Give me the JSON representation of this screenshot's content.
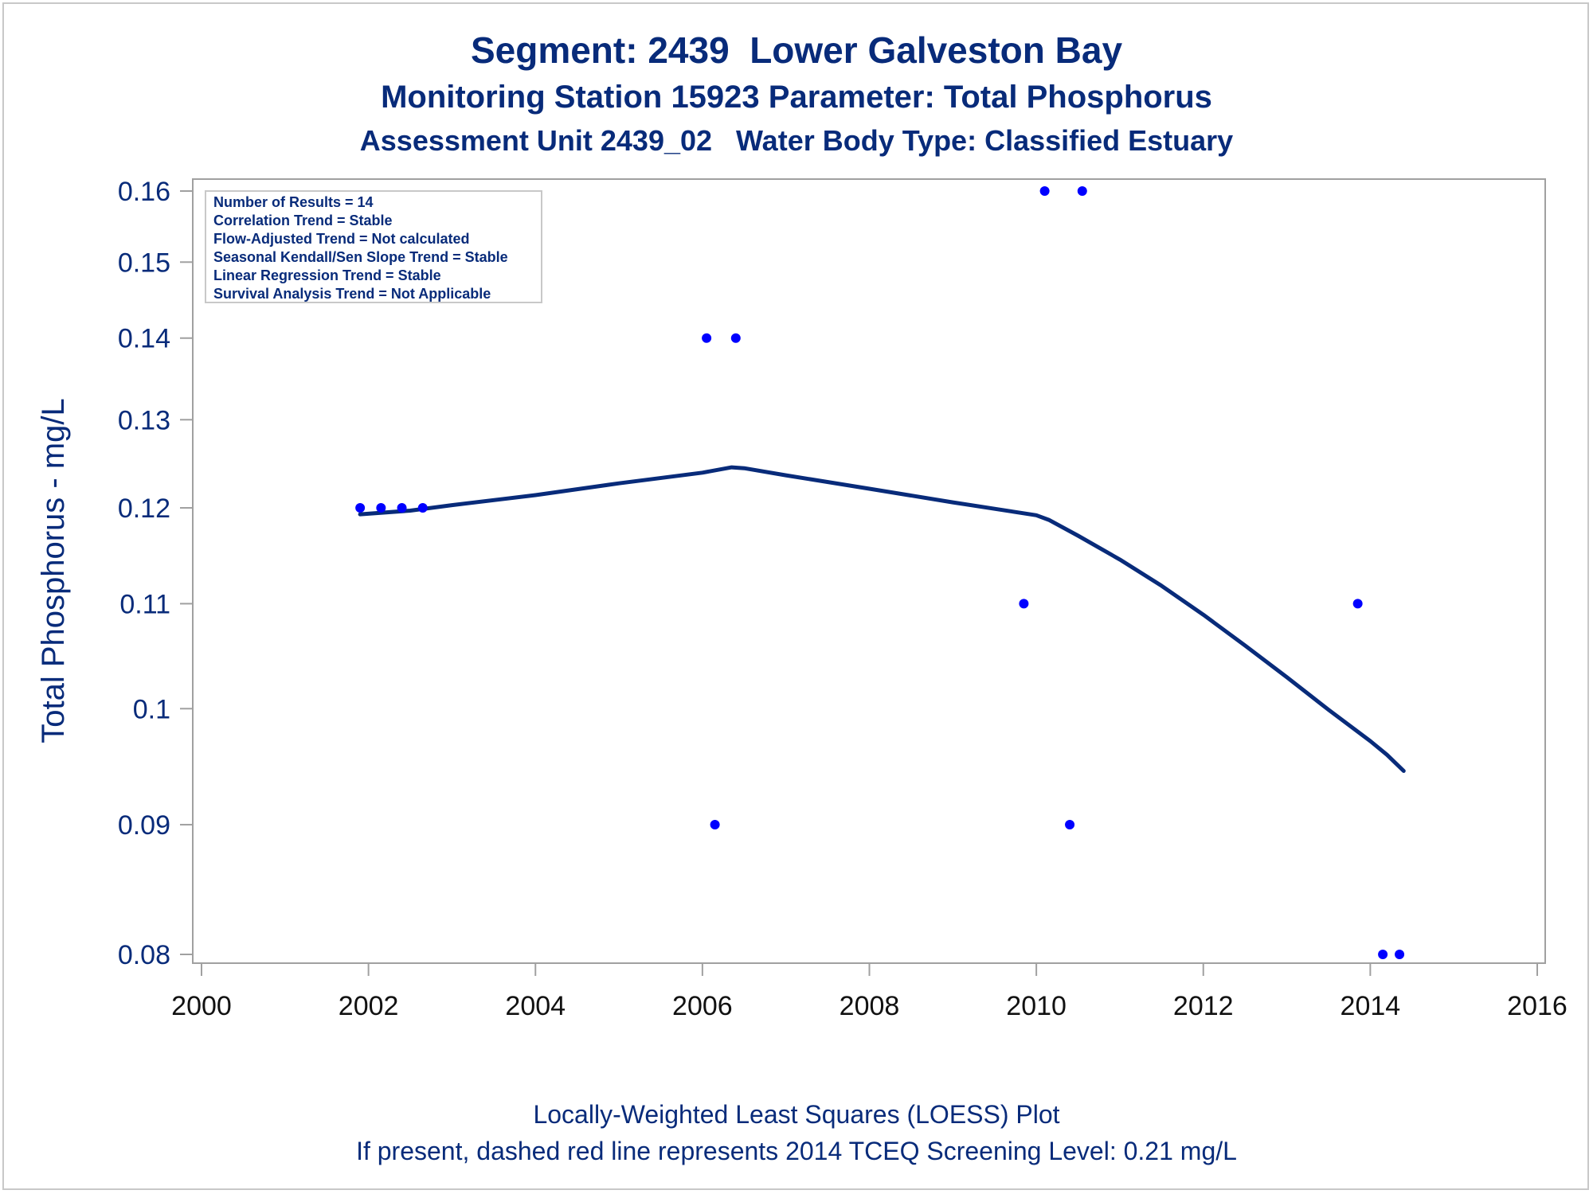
{
  "title": "Segment: 2439  Lower Galveston Bay",
  "subtitle": "Monitoring Station 15923 Parameter: Total Phosphorus",
  "subtitle2": "Assessment Unit 2439_02   Water Body Type: Classified Estuary",
  "footnotes": [
    "Locally-Weighted Least Squares (LOESS) Plot",
    "If present, dashed red line represents 2014 TCEQ Screening Level: 0.21 mg/L"
  ],
  "stats_box": [
    "Number of Results = 14",
    "Correlation Trend = Stable",
    "Flow-Adjusted Trend = Not calculated",
    "Seasonal Kendall/Sen Slope Trend = Stable",
    "Linear Regression Trend = Stable",
    "Survival Analysis Trend = Not Applicable"
  ],
  "colors": {
    "points": "#0000ff",
    "loess_line": "#082b7a",
    "text": "#082b7a",
    "axis": "#a0a0a0"
  },
  "chart_data": {
    "type": "scatter",
    "xlabel": "",
    "ylabel": "Total Phosphorus - mg/L",
    "y_scale": "log",
    "xlim": [
      2000,
      2016
    ],
    "ylim": [
      0.08,
      0.16
    ],
    "x_ticks": [
      "2000",
      "2002",
      "2004",
      "2006",
      "2008",
      "2010",
      "2012",
      "2014",
      "2016"
    ],
    "y_ticks": [
      "0.08",
      "0.09",
      "0.1",
      "0.11",
      "0.12",
      "0.13",
      "0.14",
      "0.15",
      "0.16"
    ],
    "legend": "stats box top-left",
    "grid": false,
    "series": [
      {
        "kind": "points",
        "x": [
          2001.9,
          2002.15,
          2002.4,
          2002.65,
          2006.05,
          2006.4,
          2006.15,
          2009.85,
          2010.1,
          2010.55,
          2010.4,
          2013.85,
          2014.15,
          2014.35
        ],
        "y": [
          0.12,
          0.12,
          0.12,
          0.12,
          0.14,
          0.14,
          0.09,
          0.11,
          0.16,
          0.16,
          0.09,
          0.11,
          0.08,
          0.08
        ]
      },
      {
        "kind": "loess",
        "x": [
          2001.9,
          2002.5,
          2003.0,
          2004.0,
          2005.0,
          2006.0,
          2006.35,
          2006.5,
          2007.0,
          2008.0,
          2009.0,
          2009.5,
          2010.0,
          2010.15,
          2010.5,
          2011.0,
          2011.5,
          2012.0,
          2012.5,
          2013.0,
          2013.5,
          2014.0,
          2014.2,
          2014.4
        ],
        "y": [
          0.1193,
          0.1197,
          0.1203,
          0.1214,
          0.1227,
          0.1239,
          0.1245,
          0.1244,
          0.1236,
          0.1221,
          0.1206,
          0.1199,
          0.1192,
          0.1187,
          0.117,
          0.1145,
          0.1118,
          0.1089,
          0.1059,
          0.1029,
          0.0999,
          0.0971,
          0.0959,
          0.0945
        ]
      }
    ]
  }
}
